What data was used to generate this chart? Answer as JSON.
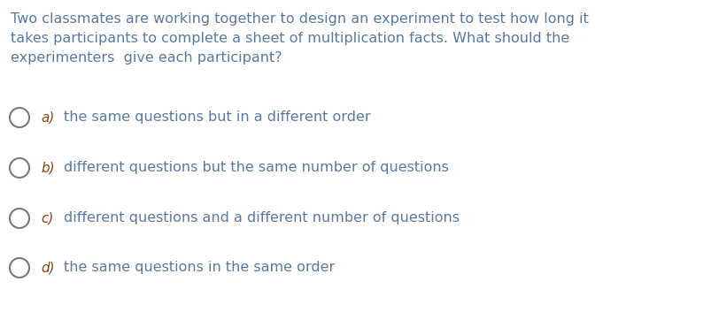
{
  "background_color": "#ffffff",
  "question_text_lines": [
    "Two classmates are working together to design an experiment to test how long it",
    "takes participants to complete a sheet of multiplication facts. What should the",
    "experimenters  give each participant?"
  ],
  "question_color": "#5a7a9f",
  "options": [
    {
      "label": "a)",
      "text": "the same questions but in a different order"
    },
    {
      "label": "b)",
      "text": "different questions but the same number of questions"
    },
    {
      "label": "c)",
      "text": "different questions and a different number of questions"
    },
    {
      "label": "d)",
      "text": "the same questions in the same order"
    }
  ],
  "option_label_color": "#8B4513",
  "option_text_color": "#5a7a9f",
  "circle_color": "#7a7a7a",
  "font_size_question": 11.5,
  "font_size_option": 11.5,
  "font_size_label": 11.0
}
